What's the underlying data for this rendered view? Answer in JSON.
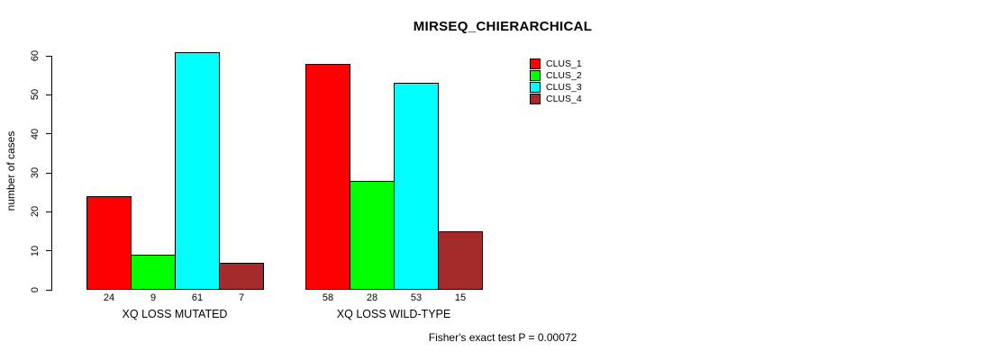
{
  "chart_data": {
    "type": "bar",
    "title": "MIRSEQ_CHIERARCHICAL",
    "ylabel": "number of cases",
    "xlabel": "",
    "categories": [
      "XQ LOSS MUTATED",
      "XQ LOSS WILD-TYPE"
    ],
    "series": [
      {
        "name": "CLUS_1",
        "color": "#FF0000",
        "values": [
          24,
          58
        ]
      },
      {
        "name": "CLUS_2",
        "color": "#00FF00",
        "values": [
          9,
          28
        ]
      },
      {
        "name": "CLUS_3",
        "color": "#00FFFF",
        "values": [
          61,
          53
        ]
      },
      {
        "name": "CLUS_4",
        "color": "#A52A2A",
        "values": [
          7,
          15
        ]
      }
    ],
    "ylim": [
      0,
      60
    ],
    "yticks": [
      0,
      10,
      20,
      30,
      40,
      50,
      60
    ],
    "grid": false,
    "bar_value_labels_shown": true,
    "legend_position": "top-right",
    "annotation": "Fisher's exact test P = 0.00072",
    "axis_color": "#000000",
    "background_color": "#FFFFFF"
  }
}
